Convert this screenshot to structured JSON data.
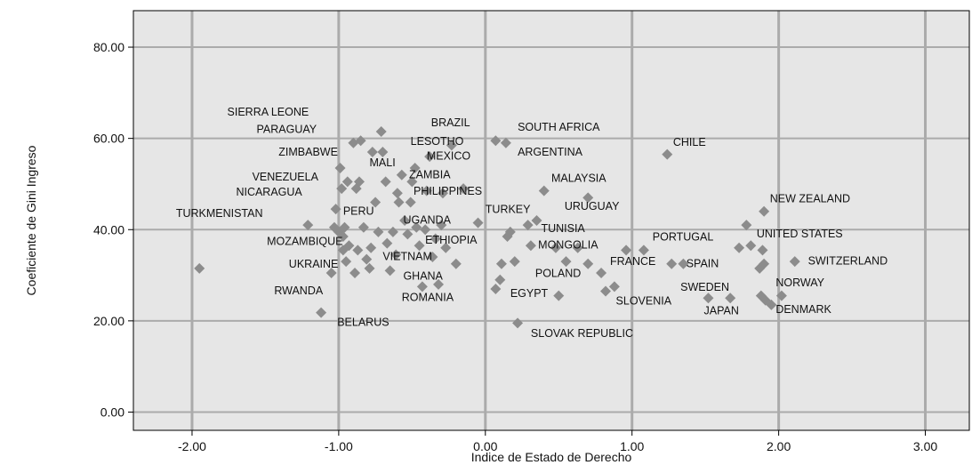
{
  "chart_data": {
    "type": "scatter",
    "xlabel": "Indice de Estado de Derecho",
    "ylabel": "Coeficiente de Gini Ingreso",
    "xlim": [
      -2.4,
      3.3
    ],
    "ylim": [
      -4,
      88
    ],
    "xticks": [
      -2,
      -1,
      0,
      1,
      2,
      3
    ],
    "xtick_labels": [
      "-2.00",
      "-1.00",
      "0.00",
      "1.00",
      "2.00",
      "3.00"
    ],
    "yticks": [
      0,
      20,
      40,
      60,
      80
    ],
    "ytick_labels": [
      "0.00",
      "20.00",
      "40.00",
      "60.00",
      "80.00"
    ],
    "grid": true,
    "colors": {
      "marker": "#8c8c8c",
      "plot_bg": "#e6e6e6",
      "grid": "#ababab",
      "frame": "#000000"
    },
    "labels": [
      {
        "text": "SIERRA LEONE",
        "x": -1.76,
        "y": 65.0
      },
      {
        "text": "PARAGUAY",
        "x": -1.56,
        "y": 61.2
      },
      {
        "text": "ZIMBABWE",
        "x": -1.41,
        "y": 56.2
      },
      {
        "text": "VENEZUELA",
        "x": -1.59,
        "y": 50.8
      },
      {
        "text": "NICARAGUA",
        "x": -1.7,
        "y": 47.5
      },
      {
        "text": "TURKMENISTAN",
        "x": -2.11,
        "y": 42.8
      },
      {
        "text": "PERU",
        "x": -0.97,
        "y": 43.3
      },
      {
        "text": "MOZAMBIQUE",
        "x": -1.49,
        "y": 36.6
      },
      {
        "text": "UKRAINE",
        "x": -1.34,
        "y": 31.7
      },
      {
        "text": "RWANDA",
        "x": -1.44,
        "y": 25.8
      },
      {
        "text": "BELARUS",
        "x": -1.01,
        "y": 18.9
      },
      {
        "text": "MALI",
        "x": -0.79,
        "y": 53.9
      },
      {
        "text": "ZAMBIA",
        "x": -0.52,
        "y": 51.3
      },
      {
        "text": "PHILIPPINES",
        "x": -0.49,
        "y": 47.7
      },
      {
        "text": "UGANDA",
        "x": -0.56,
        "y": 41.3
      },
      {
        "text": "ETHIOPIA",
        "x": -0.41,
        "y": 36.9
      },
      {
        "text": "VIETNAM",
        "x": -0.7,
        "y": 33.3
      },
      {
        "text": "GHANA",
        "x": -0.56,
        "y": 29.0
      },
      {
        "text": "ROMANIA",
        "x": -0.57,
        "y": 24.4
      },
      {
        "text": "BRAZIL",
        "x": -0.37,
        "y": 62.7
      },
      {
        "text": "LESOTHO",
        "x": -0.51,
        "y": 58.6
      },
      {
        "text": "MEXICO",
        "x": -0.4,
        "y": 55.4
      },
      {
        "text": "SOUTH AFRICA",
        "x": 0.22,
        "y": 61.7
      },
      {
        "text": "ARGENTINA",
        "x": 0.22,
        "y": 56.2
      },
      {
        "text": "MALAYSIA",
        "x": 0.45,
        "y": 50.5
      },
      {
        "text": "TURKEY",
        "x": 0.0,
        "y": 43.7
      },
      {
        "text": "URUGUAY",
        "x": 0.54,
        "y": 44.3
      },
      {
        "text": "TUNISIA",
        "x": 0.38,
        "y": 39.5
      },
      {
        "text": "MONGOLIA",
        "x": 0.36,
        "y": 35.9
      },
      {
        "text": "POLAND",
        "x": 0.34,
        "y": 29.6
      },
      {
        "text": "EGYPT",
        "x": 0.17,
        "y": 25.2
      },
      {
        "text": "SLOVAK REPUBLIC",
        "x": 0.31,
        "y": 16.5
      },
      {
        "text": "CHILE",
        "x": 1.28,
        "y": 58.4
      },
      {
        "text": "PORTUGAL",
        "x": 1.14,
        "y": 37.6
      },
      {
        "text": "FRANCE",
        "x": 0.85,
        "y": 32.3
      },
      {
        "text": "SPAIN",
        "x": 1.37,
        "y": 31.8
      },
      {
        "text": "SLOVENIA",
        "x": 0.89,
        "y": 23.6
      },
      {
        "text": "SWEDEN",
        "x": 1.33,
        "y": 26.6
      },
      {
        "text": "JAPAN",
        "x": 1.49,
        "y": 21.4
      },
      {
        "text": "NEW ZEALAND",
        "x": 1.94,
        "y": 46.0
      },
      {
        "text": "UNITED STATES",
        "x": 1.85,
        "y": 38.3
      },
      {
        "text": "SWITZERLAND",
        "x": 2.2,
        "y": 32.4
      },
      {
        "text": "NORWAY",
        "x": 1.98,
        "y": 27.6
      },
      {
        "text": "DENMARK",
        "x": 1.98,
        "y": 21.7
      }
    ],
    "points": [
      {
        "x": -1.95,
        "y": 31.5
      },
      {
        "x": -1.21,
        "y": 41.0
      },
      {
        "x": -1.12,
        "y": 21.8
      },
      {
        "x": -1.05,
        "y": 30.5
      },
      {
        "x": -1.03,
        "y": 40.5
      },
      {
        "x": -1.02,
        "y": 44.5
      },
      {
        "x": -1.0,
        "y": 39.5
      },
      {
        "x": -0.99,
        "y": 53.5
      },
      {
        "x": -0.98,
        "y": 49.0
      },
      {
        "x": -0.97,
        "y": 38.5
      },
      {
        "x": -0.97,
        "y": 35.5
      },
      {
        "x": -0.96,
        "y": 40.5
      },
      {
        "x": -0.95,
        "y": 33.0
      },
      {
        "x": -0.94,
        "y": 50.5
      },
      {
        "x": -0.93,
        "y": 36.5
      },
      {
        "x": -0.9,
        "y": 59.0
      },
      {
        "x": -0.89,
        "y": 30.5
      },
      {
        "x": -0.88,
        "y": 49.0
      },
      {
        "x": -0.87,
        "y": 35.5
      },
      {
        "x": -0.86,
        "y": 50.5
      },
      {
        "x": -0.85,
        "y": 59.5
      },
      {
        "x": -0.83,
        "y": 40.5
      },
      {
        "x": -0.81,
        "y": 33.5
      },
      {
        "x": -0.79,
        "y": 31.5
      },
      {
        "x": -0.78,
        "y": 36.0
      },
      {
        "x": -0.77,
        "y": 57.0
      },
      {
        "x": -0.75,
        "y": 46.0
      },
      {
        "x": -0.73,
        "y": 39.5
      },
      {
        "x": -0.71,
        "y": 61.5
      },
      {
        "x": -0.7,
        "y": 57.0
      },
      {
        "x": -0.68,
        "y": 50.5
      },
      {
        "x": -0.67,
        "y": 37.0
      },
      {
        "x": -0.65,
        "y": 31.0
      },
      {
        "x": -0.63,
        "y": 39.5
      },
      {
        "x": -0.61,
        "y": 34.5
      },
      {
        "x": -0.6,
        "y": 48.0
      },
      {
        "x": -0.59,
        "y": 46.0
      },
      {
        "x": -0.57,
        "y": 52.0
      },
      {
        "x": -0.55,
        "y": 42.0
      },
      {
        "x": -0.53,
        "y": 39.0
      },
      {
        "x": -0.51,
        "y": 46.0
      },
      {
        "x": -0.5,
        "y": 50.5
      },
      {
        "x": -0.48,
        "y": 53.5
      },
      {
        "x": -0.47,
        "y": 40.5
      },
      {
        "x": -0.45,
        "y": 36.5
      },
      {
        "x": -0.43,
        "y": 27.5
      },
      {
        "x": -0.41,
        "y": 40.0
      },
      {
        "x": -0.4,
        "y": 48.5
      },
      {
        "x": -0.38,
        "y": 56.0
      },
      {
        "x": -0.36,
        "y": 34.0
      },
      {
        "x": -0.34,
        "y": 38.0
      },
      {
        "x": -0.32,
        "y": 28.0
      },
      {
        "x": -0.3,
        "y": 41.0
      },
      {
        "x": -0.29,
        "y": 48.0
      },
      {
        "x": -0.27,
        "y": 36.0
      },
      {
        "x": -0.23,
        "y": 58.5
      },
      {
        "x": -0.2,
        "y": 32.5
      },
      {
        "x": -0.15,
        "y": 49.0
      },
      {
        "x": -0.05,
        "y": 41.5
      },
      {
        "x": 0.07,
        "y": 59.5
      },
      {
        "x": 0.07,
        "y": 27.0
      },
      {
        "x": 0.1,
        "y": 29.0
      },
      {
        "x": 0.11,
        "y": 32.5
      },
      {
        "x": 0.14,
        "y": 59.0
      },
      {
        "x": 0.15,
        "y": 38.5
      },
      {
        "x": 0.17,
        "y": 39.5
      },
      {
        "x": 0.2,
        "y": 33.0
      },
      {
        "x": 0.22,
        "y": 19.5
      },
      {
        "x": 0.29,
        "y": 41.0
      },
      {
        "x": 0.31,
        "y": 36.5
      },
      {
        "x": 0.35,
        "y": 42.0
      },
      {
        "x": 0.4,
        "y": 48.5
      },
      {
        "x": 0.48,
        "y": 36.0
      },
      {
        "x": 0.5,
        "y": 25.5
      },
      {
        "x": 0.55,
        "y": 33.0
      },
      {
        "x": 0.63,
        "y": 36.0
      },
      {
        "x": 0.7,
        "y": 32.5
      },
      {
        "x": 0.7,
        "y": 47.0
      },
      {
        "x": 0.79,
        "y": 30.5
      },
      {
        "x": 0.82,
        "y": 26.5
      },
      {
        "x": 0.88,
        "y": 27.5
      },
      {
        "x": 0.96,
        "y": 35.5
      },
      {
        "x": 1.08,
        "y": 35.5
      },
      {
        "x": 1.24,
        "y": 56.5
      },
      {
        "x": 1.27,
        "y": 32.5
      },
      {
        "x": 1.35,
        "y": 32.5
      },
      {
        "x": 1.52,
        "y": 25.0
      },
      {
        "x": 1.67,
        "y": 25.0
      },
      {
        "x": 1.73,
        "y": 36.0
      },
      {
        "x": 1.78,
        "y": 41.0
      },
      {
        "x": 1.81,
        "y": 36.5
      },
      {
        "x": 1.87,
        "y": 31.5
      },
      {
        "x": 1.88,
        "y": 25.5
      },
      {
        "x": 1.89,
        "y": 35.5
      },
      {
        "x": 1.9,
        "y": 44.0
      },
      {
        "x": 1.9,
        "y": 32.5
      },
      {
        "x": 1.91,
        "y": 24.5
      },
      {
        "x": 1.95,
        "y": 23.5
      },
      {
        "x": 2.02,
        "y": 25.5
      },
      {
        "x": 2.11,
        "y": 33.0
      }
    ]
  }
}
